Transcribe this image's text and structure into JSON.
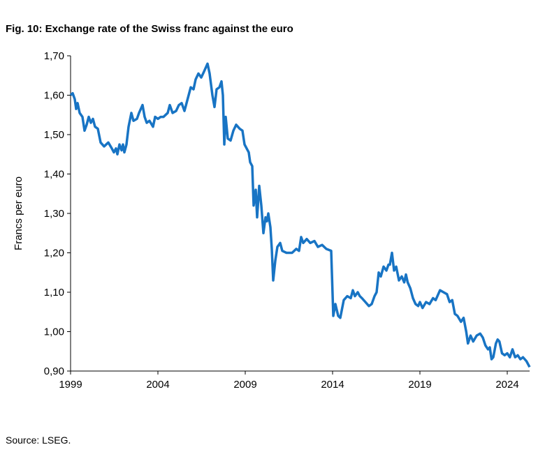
{
  "chart_data": {
    "type": "line",
    "title": "Fig. 10: Exchange rate of the Swiss franc against the euro",
    "y_label": "Francs per euro",
    "source": "Source: LSEG.",
    "xlim": [
      1999,
      2025.28
    ],
    "xticks": [
      1999,
      2004,
      2009,
      2014,
      2019,
      2024
    ],
    "ylim": [
      0.9,
      1.7
    ],
    "yticks": [
      {
        "value": 0.9,
        "label": "0,90"
      },
      {
        "value": 1.0,
        "label": "1,00"
      },
      {
        "value": 1.1,
        "label": "1,10"
      },
      {
        "value": 1.2,
        "label": "1,20"
      },
      {
        "value": 1.3,
        "label": "1,30"
      },
      {
        "value": 1.4,
        "label": "1,40"
      },
      {
        "value": 1.5,
        "label": "1,50"
      },
      {
        "value": 1.6,
        "label": "1,60"
      },
      {
        "value": 1.7,
        "label": "1,70"
      }
    ],
    "grid": false,
    "x": [
      1999.0,
      1999.12,
      1999.24,
      1999.32,
      1999.4,
      1999.52,
      1999.68,
      1999.8,
      1999.92,
      2000.04,
      2000.16,
      2000.28,
      2000.4,
      2000.56,
      2000.72,
      2000.92,
      2001.16,
      2001.36,
      2001.48,
      2001.6,
      2001.68,
      2001.8,
      2001.92,
      2002.0,
      2002.08,
      2002.2,
      2002.32,
      2002.48,
      2002.6,
      2002.8,
      2002.92,
      2003.12,
      2003.24,
      2003.36,
      2003.52,
      2003.72,
      2003.84,
      2004.0,
      2004.16,
      2004.32,
      2004.56,
      2004.68,
      2004.84,
      2005.04,
      2005.2,
      2005.36,
      2005.52,
      2005.76,
      2005.88,
      2006.04,
      2006.16,
      2006.32,
      2006.48,
      2006.64,
      2006.84,
      2006.96,
      2007.12,
      2007.24,
      2007.36,
      2007.52,
      2007.64,
      2007.72,
      2007.8,
      2007.88,
      2008.0,
      2008.16,
      2008.32,
      2008.48,
      2008.68,
      2008.84,
      2008.96,
      2009.08,
      2009.2,
      2009.28,
      2009.4,
      2009.48,
      2009.6,
      2009.68,
      2009.8,
      2009.92,
      2010.04,
      2010.16,
      2010.24,
      2010.32,
      2010.44,
      2010.52,
      2010.6,
      2010.72,
      2010.84,
      2011.0,
      2011.12,
      2011.36,
      2011.68,
      2011.92,
      2012.08,
      2012.2,
      2012.32,
      2012.52,
      2012.72,
      2012.96,
      2013.16,
      2013.4,
      2013.64,
      2013.92,
      2014.04,
      2014.16,
      2014.32,
      2014.44,
      2014.64,
      2014.84,
      2015.04,
      2015.16,
      2015.28,
      2015.44,
      2015.56,
      2015.68,
      2015.88,
      2016.08,
      2016.24,
      2016.4,
      2016.52,
      2016.64,
      2016.76,
      2016.92,
      2017.08,
      2017.2,
      2017.28,
      2017.4,
      2017.52,
      2017.64,
      2017.8,
      2017.96,
      2018.1,
      2018.2,
      2018.3,
      2018.45,
      2018.6,
      2018.75,
      2018.9,
      2019.0,
      2019.15,
      2019.35,
      2019.55,
      2019.75,
      2019.9,
      2020.15,
      2020.35,
      2020.55,
      2020.7,
      2020.85,
      2021.0,
      2021.15,
      2021.35,
      2021.5,
      2021.65,
      2021.75,
      2021.9,
      2022.05,
      2022.25,
      2022.45,
      2022.6,
      2022.75,
      2022.9,
      2023.0,
      2023.1,
      2023.2,
      2023.35,
      2023.45,
      2023.55,
      2023.7,
      2023.85,
      2024.0,
      2024.15,
      2024.3,
      2024.45,
      2024.6,
      2024.75,
      2024.9,
      2025.1,
      2025.28
    ],
    "series": [
      {
        "name": "CHF per EUR",
        "color": "#1874c4",
        "values": [
          1.6,
          1.605,
          1.59,
          1.565,
          1.58,
          1.555,
          1.545,
          1.51,
          1.525,
          1.545,
          1.53,
          1.54,
          1.52,
          1.515,
          1.48,
          1.47,
          1.48,
          1.465,
          1.455,
          1.465,
          1.45,
          1.475,
          1.46,
          1.475,
          1.455,
          1.475,
          1.52,
          1.555,
          1.535,
          1.54,
          1.555,
          1.575,
          1.545,
          1.53,
          1.535,
          1.52,
          1.545,
          1.54,
          1.545,
          1.545,
          1.555,
          1.575,
          1.555,
          1.56,
          1.575,
          1.58,
          1.56,
          1.6,
          1.62,
          1.615,
          1.64,
          1.655,
          1.645,
          1.66,
          1.68,
          1.655,
          1.6,
          1.57,
          1.615,
          1.62,
          1.635,
          1.6,
          1.475,
          1.545,
          1.49,
          1.485,
          1.51,
          1.525,
          1.515,
          1.51,
          1.475,
          1.465,
          1.455,
          1.43,
          1.42,
          1.32,
          1.36,
          1.29,
          1.37,
          1.32,
          1.25,
          1.29,
          1.28,
          1.3,
          1.265,
          1.21,
          1.13,
          1.18,
          1.215,
          1.225,
          1.205,
          1.2,
          1.2,
          1.21,
          1.205,
          1.24,
          1.225,
          1.235,
          1.225,
          1.23,
          1.215,
          1.22,
          1.21,
          1.205,
          1.04,
          1.07,
          1.04,
          1.035,
          1.08,
          1.09,
          1.085,
          1.105,
          1.09,
          1.1,
          1.09,
          1.085,
          1.075,
          1.065,
          1.07,
          1.09,
          1.1,
          1.15,
          1.14,
          1.165,
          1.155,
          1.17,
          1.17,
          1.2,
          1.155,
          1.165,
          1.13,
          1.14,
          1.125,
          1.145,
          1.125,
          1.11,
          1.085,
          1.07,
          1.065,
          1.075,
          1.06,
          1.075,
          1.07,
          1.085,
          1.08,
          1.105,
          1.1,
          1.095,
          1.075,
          1.08,
          1.045,
          1.04,
          1.025,
          1.035,
          1.0,
          0.97,
          0.99,
          0.975,
          0.99,
          0.995,
          0.985,
          0.965,
          0.955,
          0.96,
          0.93,
          0.935,
          0.97,
          0.98,
          0.975,
          0.945,
          0.94,
          0.945,
          0.935,
          0.955,
          0.935,
          0.94,
          0.93,
          0.935,
          0.925,
          0.91
        ]
      }
    ]
  }
}
